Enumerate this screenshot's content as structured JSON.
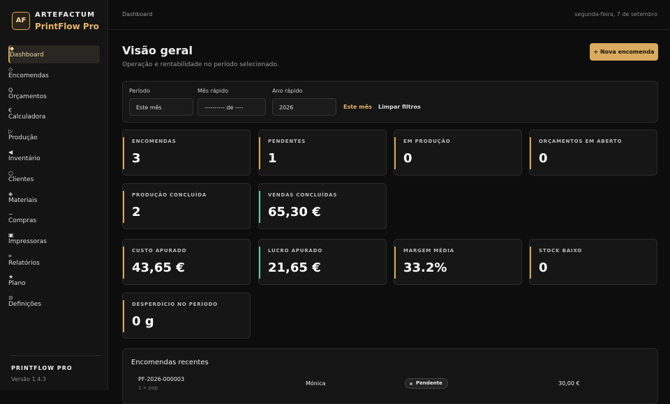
{
  "sidebar": {
    "logo": "AF",
    "brand": "ARTEFACTUM",
    "product": "PrintFlow Pro",
    "nav": [
      {
        "icon": "◆",
        "label": "Dashboard",
        "active": true
      },
      {
        "icon": "◇",
        "label": "Encomendas"
      },
      {
        "icon": "Q",
        "label": "Orçamentos"
      },
      {
        "icon": "€",
        "label": "Calculadora"
      },
      {
        "icon": "▷",
        "label": "Produção"
      },
      {
        "icon": "◀",
        "label": "Inventário"
      },
      {
        "icon": "○",
        "label": "Clientes"
      },
      {
        "icon": "◈",
        "label": "Materiais"
      },
      {
        "icon": "~",
        "label": "Compras"
      },
      {
        "icon": "▣",
        "label": "Impressoras"
      },
      {
        "icon": "⌗",
        "label": "Relatórios"
      },
      {
        "icon": "★",
        "label": "Plano"
      },
      {
        "icon": "⊙",
        "label": "Definições"
      }
    ],
    "footer_title": "PRINTFLOW PRO",
    "version": "Versão 1.4.3"
  },
  "topbar": {
    "breadcrumb": "Dashboard",
    "date": "segunda-feira, 7 de setembro"
  },
  "header": {
    "title": "Visão geral",
    "subtitle": "Operação e rentabilidade no período selecionado.",
    "button": "+ Nova encomenda"
  },
  "filters": {
    "period_label": "Período",
    "period_value": "Este mês",
    "month_label": "Mês rápido",
    "month_value": "---------- de ----",
    "year_label": "Ano rápido",
    "year_value": "2026",
    "this_month": "Este mês",
    "clear": "Limpar filtros"
  },
  "cards": [
    {
      "label": "ENCOMENDAS",
      "value": "3",
      "accent": "#d9a957"
    },
    {
      "label": "PENDENTES",
      "value": "1",
      "accent": "#d9a957"
    },
    {
      "label": "EM PRODUÇÃO",
      "value": "0",
      "accent": "#d9a957"
    },
    {
      "label": "ORÇAMENTOS EM ABERTO",
      "value": "0",
      "accent": "#d9a957"
    },
    {
      "label": "PRODUÇÃO CONCLUÍDA",
      "value": "2",
      "accent": "#d9a957"
    },
    {
      "label": "VENDAS CONCLUÍDAS",
      "value": "65,30 €",
      "accent": "#5fc9a8"
    },
    {
      "label": "CUSTO APURADO",
      "value": "43,65 €",
      "accent": "#d9a957"
    },
    {
      "label": "LUCRO APURADO",
      "value": "21,65 €",
      "accent": "#5fc9a8"
    },
    {
      "label": "MARGEM MÉDIA",
      "value": "33.2%",
      "accent": "#d9a957"
    },
    {
      "label": "STOCK BAIXO",
      "value": "0",
      "accent": "#d9a957"
    },
    {
      "label": "DESPERDÍCIO NO PERÍODO",
      "value": "0 g",
      "accent": "#d9a957"
    }
  ],
  "recent": {
    "title": "Encomendas recentes",
    "rows": [
      {
        "code": "PF-2026-000003",
        "detail": "1 × pop",
        "client": "Mónica",
        "status": "Pendente",
        "total": "30,00 €"
      }
    ]
  }
}
